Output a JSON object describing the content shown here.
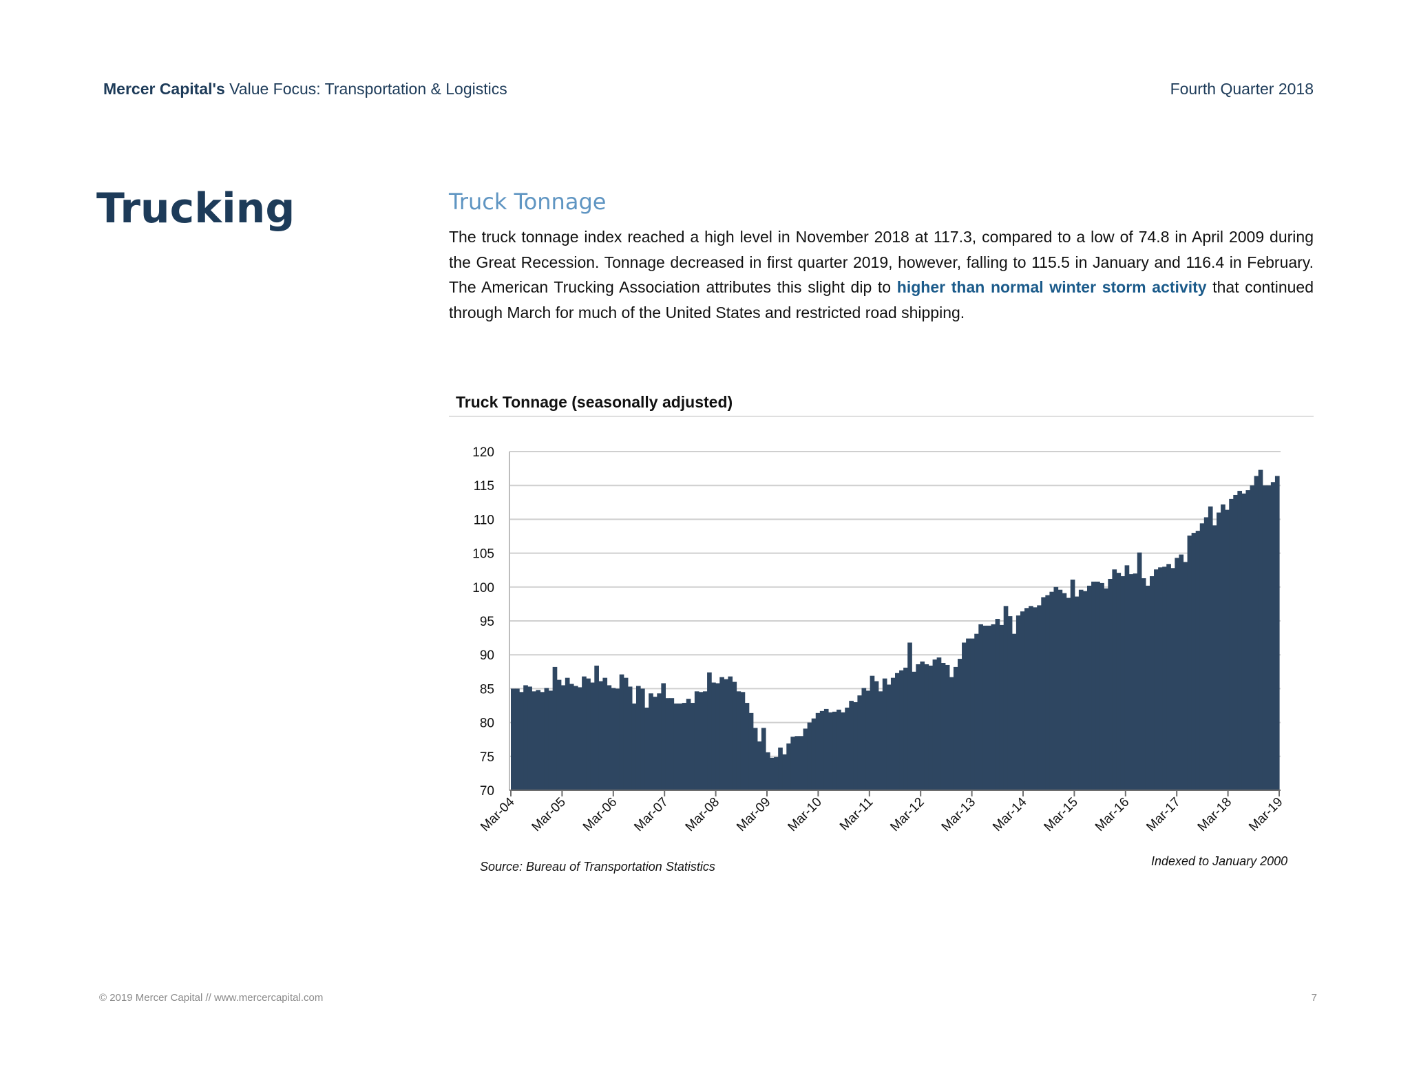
{
  "header": {
    "brand": "Mercer Capital's",
    "publication": " Value Focus: Transportation & Logistics",
    "period": "Fourth Quarter 2018"
  },
  "section": {
    "title": "Trucking",
    "subtitle": "Truck Tonnage"
  },
  "body": {
    "text_before": "The truck tonnage index reached a high level in November 2018 at 117.3, compared to a low of 74.8 in April 2009 during the Great Recession.  Tonnage decreased in first quarter 2019, however, falling to 115.5 in January and 116.4 in February.   The American Trucking Association attributes this slight dip to ",
    "highlight": "higher than normal winter storm activity",
    "text_after": " that continued through March for much of the United States and restricted road shipping."
  },
  "colors": {
    "bar": "#2e4661",
    "grid": "#cfcfcf",
    "accent": "#1d3b59",
    "subtitle": "#5f95c2"
  },
  "chart_data": {
    "type": "bar",
    "title": "Truck Tonnage (seasonally adjusted)",
    "ylim": [
      70,
      120
    ],
    "yticks": [
      70,
      75,
      80,
      85,
      90,
      95,
      100,
      105,
      110,
      115,
      120
    ],
    "grid": true,
    "xticks": [
      "Mar-04",
      "Mar-05",
      "Mar-06",
      "Mar-07",
      "Mar-08",
      "Mar-09",
      "Mar-10",
      "Mar-11",
      "Mar-12",
      "Mar-13",
      "Mar-14",
      "Mar-15",
      "Mar-16",
      "Mar-17",
      "Mar-18",
      "Mar-19"
    ],
    "series": [
      {
        "values": [
          85.0,
          85.0,
          84.5,
          85.5,
          85.3,
          84.6,
          84.8,
          84.5,
          85.1,
          84.7,
          88.2,
          86.3,
          85.5,
          86.6,
          85.7,
          85.4,
          85.2,
          86.8,
          86.5,
          85.9,
          88.4,
          86.1,
          86.6,
          85.5,
          85.1,
          85.0,
          87.1,
          86.6,
          85.3,
          82.8,
          85.4,
          85.0,
          82.2,
          84.3,
          83.8,
          84.3,
          85.8,
          83.6,
          83.6,
          82.8,
          82.8,
          82.9,
          83.5,
          82.9,
          84.6,
          84.5,
          84.6,
          87.4,
          85.9,
          85.8,
          86.7,
          86.4,
          86.8,
          86.0,
          84.6,
          84.5,
          82.9,
          81.4,
          79.2,
          77.2,
          79.2,
          75.6,
          74.8,
          74.9,
          76.3,
          75.3,
          76.9,
          77.9,
          78.0,
          78.0,
          79.1,
          80.0,
          80.6,
          81.4,
          81.7,
          82.0,
          81.5,
          81.6,
          81.9,
          81.5,
          82.2,
          83.2,
          83.0,
          84.0,
          85.1,
          84.7,
          86.9,
          86.1,
          84.6,
          86.5,
          85.6,
          86.6,
          87.3,
          87.7,
          88.1,
          91.8,
          87.5,
          88.6,
          89.0,
          88.6,
          88.4,
          89.3,
          89.6,
          88.8,
          88.5,
          86.7,
          88.2,
          89.4,
          91.8,
          92.4,
          92.4,
          93.1,
          94.5,
          94.3,
          94.3,
          94.5,
          95.3,
          94.4,
          97.2,
          95.7,
          93.1,
          95.8,
          96.4,
          96.9,
          97.2,
          97.0,
          97.3,
          98.5,
          98.8,
          99.3,
          100.0,
          99.6,
          99.1,
          98.4,
          101.1,
          98.6,
          99.6,
          99.4,
          100.2,
          100.8,
          100.8,
          100.6,
          99.8,
          101.2,
          102.6,
          102.1,
          101.6,
          103.2,
          101.9,
          102.0,
          105.1,
          101.3,
          100.2,
          101.6,
          102.6,
          102.9,
          103.0,
          103.4,
          102.8,
          104.3,
          104.8,
          103.7,
          107.6,
          108.0,
          108.3,
          109.4,
          110.3,
          111.9,
          109.1,
          111.0,
          112.2,
          111.4,
          113.0,
          113.6,
          114.2,
          113.8,
          114.3,
          115.0,
          116.4,
          117.3,
          115.0,
          115.0,
          115.5,
          116.4
        ]
      }
    ]
  },
  "notes": {
    "source": "Source: Bureau of Transportation Statistics",
    "index": "Indexed to January 2000"
  },
  "footer": {
    "copyright": "© 2019 Mercer Capital // www.mercercapital.com",
    "page": "7"
  }
}
